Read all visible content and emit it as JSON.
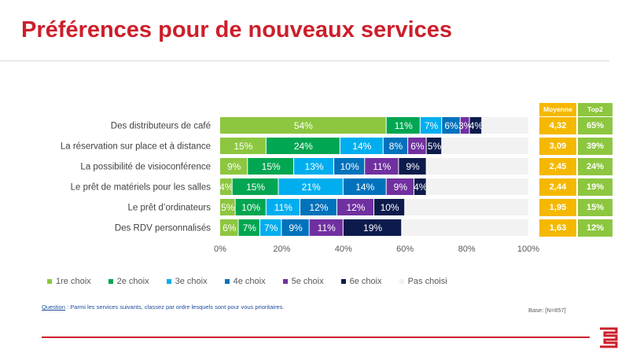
{
  "title": "Préférences pour de nouveaux services",
  "chart_data": {
    "type": "bar",
    "orientation": "horizontal",
    "stacked": true,
    "categories": [
      "Des distributeurs de café",
      "La réservation sur place et à distance",
      "La possibilité de visioconférence",
      "Le prêt de matériels pour les salles",
      "Le prêt d’ordinateurs",
      "Des RDV personnalisés"
    ],
    "series": [
      {
        "name": "1re choix",
        "color": "#8dc63f",
        "values": [
          54,
          15,
          9,
          4,
          5,
          6
        ]
      },
      {
        "name": "2e choix",
        "color": "#00a651",
        "values": [
          11,
          24,
          15,
          15,
          10,
          7
        ]
      },
      {
        "name": "3e choix",
        "color": "#00aeef",
        "values": [
          7,
          14,
          13,
          21,
          11,
          7
        ]
      },
      {
        "name": "4e choix",
        "color": "#0072bc",
        "values": [
          6,
          8,
          10,
          14,
          12,
          9
        ]
      },
      {
        "name": "5e choix",
        "color": "#7030a0",
        "values": [
          3,
          6,
          11,
          9,
          12,
          11
        ]
      },
      {
        "name": "6e choix",
        "color": "#0d1b4c",
        "values": [
          4,
          5,
          9,
          4,
          10,
          19
        ]
      },
      {
        "name": "Pas choisi",
        "color": "#f2f2f2",
        "values": [
          15,
          28,
          33,
          33,
          40,
          41
        ]
      }
    ],
    "xlim": [
      0,
      100
    ],
    "xticks": [
      "0%",
      "20%",
      "40%",
      "60%",
      "80%",
      "100%"
    ],
    "legend_position": "bottom",
    "side_table": {
      "columns": [
        {
          "header": "Moyenne",
          "color": "#f5b800",
          "values": [
            "4,32",
            "3,09",
            "2,45",
            "2,44",
            "1,95",
            "1,63"
          ]
        },
        {
          "header": "Top2",
          "color": "#8dc63f",
          "values": [
            "65%",
            "39%",
            "24%",
            "19%",
            "15%",
            "12%"
          ]
        }
      ]
    }
  },
  "footer": {
    "question_label": "Question",
    "question_text": " : Parmi les services suivants, classez par ordre lesquels sont pour vous prioritaires.",
    "base": "Base: [N=857]"
  }
}
